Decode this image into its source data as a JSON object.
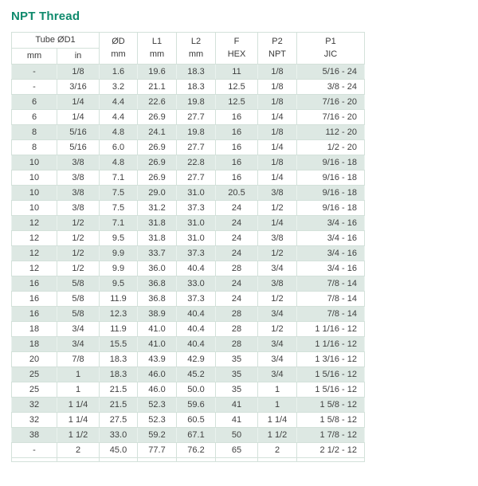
{
  "title": "NPT Thread",
  "accent_color": "#0f8a6d",
  "row_shade_color": "#dde8e3",
  "table": {
    "header": {
      "tube_group_label": "Tube ØD1",
      "tube_sub_mm": "mm",
      "tube_sub_in": "in",
      "columns": [
        {
          "label": "ØD",
          "sub": "mm"
        },
        {
          "label": "L1",
          "sub": "mm"
        },
        {
          "label": "L2",
          "sub": "mm"
        },
        {
          "label": "F",
          "sub": "HEX"
        },
        {
          "label": "P2",
          "sub": "NPT"
        },
        {
          "label": "P1",
          "sub": "JIC"
        }
      ]
    },
    "rows": [
      [
        "-",
        "1/8",
        "1.6",
        "19.6",
        "18.3",
        "11",
        "1/8",
        "5/16 - 24"
      ],
      [
        "-",
        "3/16",
        "3.2",
        "21.1",
        "18.3",
        "12.5",
        "1/8",
        "3/8 - 24"
      ],
      [
        "6",
        "1/4",
        "4.4",
        "22.6",
        "19.8",
        "12.5",
        "1/8",
        "7/16 - 20"
      ],
      [
        "6",
        "1/4",
        "4.4",
        "26.9",
        "27.7",
        "16",
        "1/4",
        "7/16 - 20"
      ],
      [
        "8",
        "5/16",
        "4.8",
        "24.1",
        "19.8",
        "16",
        "1/8",
        "112 - 20"
      ],
      [
        "8",
        "5/16",
        "6.0",
        "26.9",
        "27.7",
        "16",
        "1/4",
        "1/2 - 20"
      ],
      [
        "10",
        "3/8",
        "4.8",
        "26.9",
        "22.8",
        "16",
        "1/8",
        "9/16 - 18"
      ],
      [
        "10",
        "3/8",
        "7.1",
        "26.9",
        "27.7",
        "16",
        "1/4",
        "9/16 - 18"
      ],
      [
        "10",
        "3/8",
        "7.5",
        "29.0",
        "31.0",
        "20.5",
        "3/8",
        "9/16 - 18"
      ],
      [
        "10",
        "3/8",
        "7.5",
        "31.2",
        "37.3",
        "24",
        "1/2",
        "9/16 - 18"
      ],
      [
        "12",
        "1/2",
        "7.1",
        "31.8",
        "31.0",
        "24",
        "1/4",
        "3/4 - 16"
      ],
      [
        "12",
        "1/2",
        "9.5",
        "31.8",
        "31.0",
        "24",
        "3/8",
        "3/4 - 16"
      ],
      [
        "12",
        "1/2",
        "9.9",
        "33.7",
        "37.3",
        "24",
        "1/2",
        "3/4 - 16"
      ],
      [
        "12",
        "1/2",
        "9.9",
        "36.0",
        "40.4",
        "28",
        "3/4",
        "3/4 - 16"
      ],
      [
        "16",
        "5/8",
        "9.5",
        "36.8",
        "33.0",
        "24",
        "3/8",
        "7/8 - 14"
      ],
      [
        "16",
        "5/8",
        "11.9",
        "36.8",
        "37.3",
        "24",
        "1/2",
        "7/8 - 14"
      ],
      [
        "16",
        "5/8",
        "12.3",
        "38.9",
        "40.4",
        "28",
        "3/4",
        "7/8 - 14"
      ],
      [
        "18",
        "3/4",
        "11.9",
        "41.0",
        "40.4",
        "28",
        "1/2",
        "1 1/16 - 12"
      ],
      [
        "18",
        "3/4",
        "15.5",
        "41.0",
        "40.4",
        "28",
        "3/4",
        "1 1/16 - 12"
      ],
      [
        "20",
        "7/8",
        "18.3",
        "43.9",
        "42.9",
        "35",
        "3/4",
        "1 3/16 - 12"
      ],
      [
        "25",
        "1",
        "18.3",
        "46.0",
        "45.2",
        "35",
        "3/4",
        "1 5/16 - 12"
      ],
      [
        "25",
        "1",
        "21.5",
        "46.0",
        "50.0",
        "35",
        "1",
        "1 5/16 - 12"
      ],
      [
        "32",
        "1 1/4",
        "21.5",
        "52.3",
        "59.6",
        "41",
        "1",
        "1 5/8 - 12"
      ],
      [
        "32",
        "1 1/4",
        "27.5",
        "52.3",
        "60.5",
        "41",
        "1 1/4",
        "1 5/8 - 12"
      ],
      [
        "38",
        "1 1/2",
        "33.0",
        "59.2",
        "67.1",
        "50",
        "1 1/2",
        "1 7/8 - 12"
      ],
      [
        "-",
        "2",
        "45.0",
        "77.7",
        "76.2",
        "65",
        "2",
        "2 1/2 - 12"
      ]
    ]
  }
}
